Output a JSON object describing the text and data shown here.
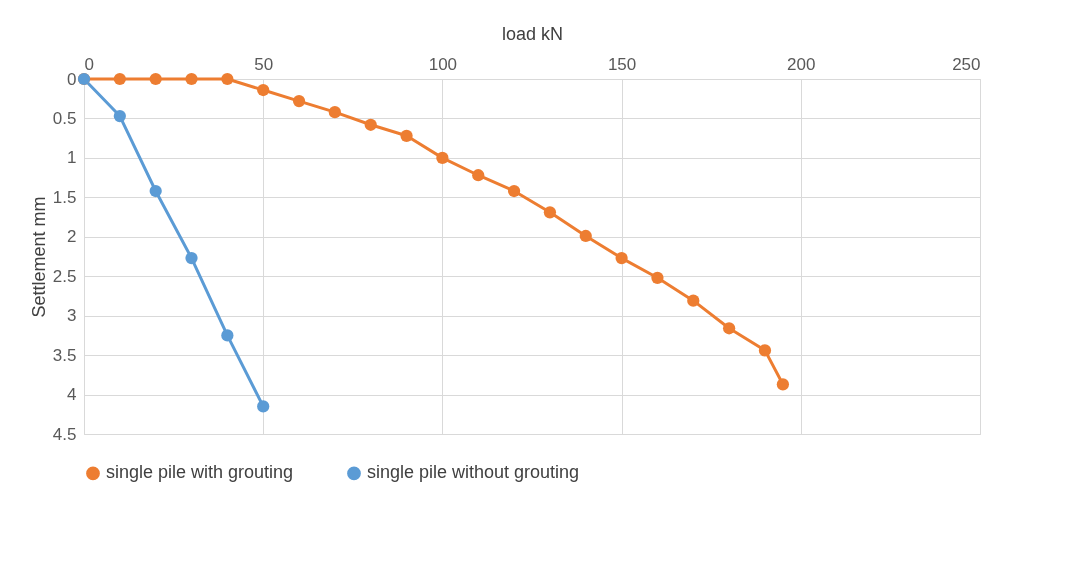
{
  "chart_data": {
    "type": "line",
    "xlabel": "load kN",
    "ylabel": "Settlement mm",
    "xlim": [
      0,
      250
    ],
    "xticks": [
      0,
      50,
      100,
      150,
      200,
      250
    ],
    "ylim": [
      4.5,
      0
    ],
    "yticks": [
      0,
      0.5,
      1,
      1.5,
      2,
      2.5,
      3,
      3.5,
      4,
      4.5
    ],
    "grid": true,
    "legend": "bottom",
    "marker": "circle",
    "line_style": "solid",
    "series": [
      {
        "name": "single pile with grouting",
        "color": "#ed7d31",
        "x": [
          0,
          10,
          20,
          30,
          40,
          50,
          60,
          70,
          80,
          90,
          100,
          110,
          120,
          130,
          140,
          150,
          160,
          170,
          180,
          190,
          195
        ],
        "values": [
          0,
          0,
          0,
          0,
          0,
          0.14,
          0.28,
          0.42,
          0.58,
          0.72,
          1.0,
          1.22,
          1.42,
          1.69,
          1.99,
          2.27,
          2.52,
          2.81,
          3.16,
          3.44,
          3.87
        ]
      },
      {
        "name": "single pile without grouting",
        "color": "#5b9bd5",
        "x": [
          0,
          10,
          20,
          30,
          40,
          50
        ],
        "values": [
          0,
          0.47,
          1.42,
          2.27,
          3.25,
          4.15
        ]
      }
    ]
  }
}
